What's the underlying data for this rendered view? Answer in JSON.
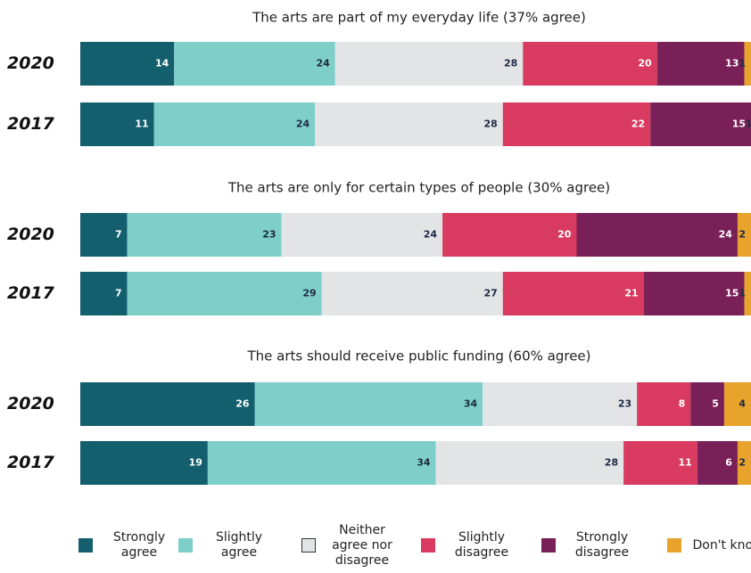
{
  "chart_data": {
    "type": "bar",
    "orientation": "horizontal",
    "stacked": true,
    "xlim": [
      0,
      100
    ],
    "series": [
      {
        "name": "Strongly agree",
        "color": "#135f6e"
      },
      {
        "name": "Slightly agree",
        "color": "#7ecfca"
      },
      {
        "name": "Neither agree nor disagree",
        "color": "#e2e4e6"
      },
      {
        "name": "Slightly disagree",
        "color": "#d93a5f"
      },
      {
        "name": "Strongly disagree",
        "color": "#7a2058"
      },
      {
        "name": "Don't know",
        "color": "#e8a32c"
      }
    ],
    "panels": [
      {
        "title": "The arts are part of my everyday life (37% agree)",
        "categories": [
          "2020",
          "2017"
        ],
        "values": [
          [
            14,
            24,
            28,
            20,
            13,
            1
          ],
          [
            11,
            24,
            28,
            22,
            15,
            1
          ]
        ]
      },
      {
        "title": "The arts are only for certain types of people (30% agree)",
        "categories": [
          "2020",
          "2017"
        ],
        "values": [
          [
            7,
            23,
            24,
            20,
            24,
            2
          ],
          [
            7,
            29,
            27,
            21,
            15,
            1
          ]
        ]
      },
      {
        "title": "The arts should receive public funding (60% agree)",
        "categories": [
          "2020",
          "2017"
        ],
        "values": [
          [
            26,
            34,
            23,
            8,
            5,
            4
          ],
          [
            19,
            34,
            28,
            11,
            6,
            2
          ]
        ]
      }
    ]
  }
}
